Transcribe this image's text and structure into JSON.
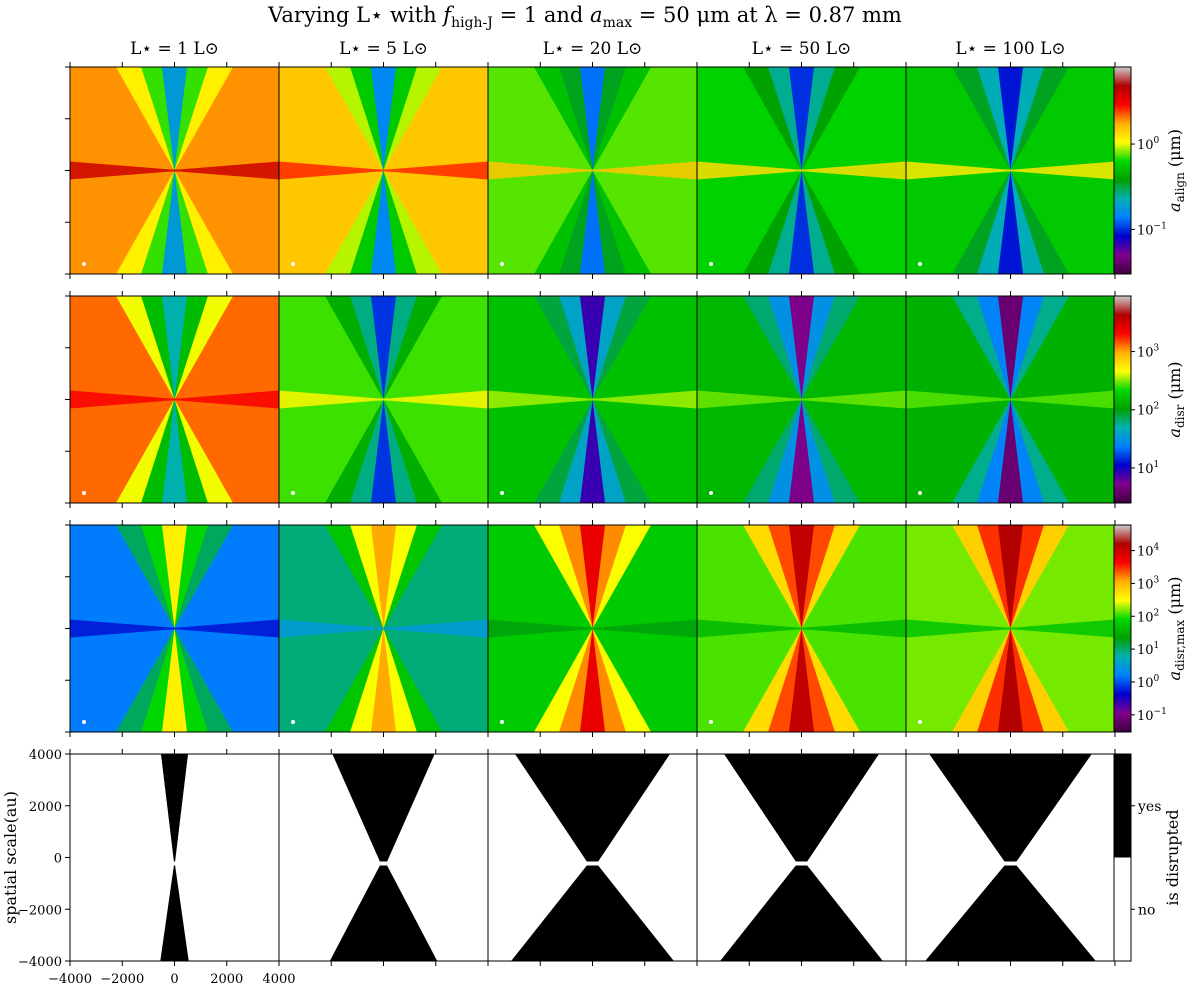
{
  "chart_data": {
    "type": "heatmap",
    "title": "Varying L⋆ with f_high-J = 1 and a_max = 50 μm at λ = 0.87 mm",
    "title_parts": {
      "prefix": "Varying L⋆ with ",
      "f": "f",
      "f_sub": "high-J",
      "eq1": " = 1 and ",
      "a": "a",
      "a_sub": "max",
      "eq2": " = 50 μm at λ = 0.87 mm"
    },
    "columns": [
      {
        "label": "L⋆ = 1 L⊙",
        "luminosity": 1
      },
      {
        "label": "L⋆ = 5 L⊙",
        "luminosity": 5
      },
      {
        "label": "L⋆ = 20 L⊙",
        "luminosity": 20
      },
      {
        "label": "L⋆ = 50 L⊙",
        "luminosity": 50
      },
      {
        "label": "L⋆ = 100 L⊙",
        "luminosity": 100
      }
    ],
    "rows": [
      {
        "quantity": "a_align",
        "colorbar_label": "a_align (μm)",
        "label_parts": {
          "sym": "a",
          "sub": "align",
          "unit": " (μm)"
        },
        "scale": "log",
        "ticks": [
          {
            "label": "10",
            "exp": "0",
            "value": 1
          },
          {
            "label": "10",
            "exp": "−1",
            "value": 0.1
          }
        ],
        "clim": [
          0.03,
          8
        ],
        "features": [
          {
            "bg": 1.9,
            "plane": 4.0,
            "lobe": 0.7,
            "core": 0.18
          },
          {
            "bg": 1.5,
            "plane": 2.6,
            "lobe": 0.55,
            "core": 0.15
          },
          {
            "bg": 0.75,
            "plane": 1.5,
            "lobe": 0.35,
            "core": 0.13
          },
          {
            "bg": 0.6,
            "plane": 1.3,
            "lobe": 0.25,
            "core": 0.1
          },
          {
            "bg": 0.55,
            "plane": 1.2,
            "lobe": 0.22,
            "core": 0.09
          }
        ]
      },
      {
        "quantity": "a_disr",
        "colorbar_label": "a_disr (μm)",
        "label_parts": {
          "sym": "a",
          "sub": "disr",
          "unit": " (μm)"
        },
        "scale": "log",
        "ticks": [
          {
            "label": "10",
            "exp": "3",
            "value": 1000
          },
          {
            "label": "10",
            "exp": "2",
            "value": 100
          },
          {
            "label": "10",
            "exp": "1",
            "value": 10
          }
        ],
        "clim": [
          2.5,
          9000
        ],
        "features": [
          {
            "bg": 1300,
            "plane": 2200,
            "lobe": 150,
            "core": 50
          },
          {
            "bg": 260,
            "plane": 500,
            "lobe": 60,
            "core": 15
          },
          {
            "bg": 160,
            "plane": 350,
            "lobe": 40,
            "core": 8
          },
          {
            "bg": 140,
            "plane": 300,
            "lobe": 30,
            "core": 5
          },
          {
            "bg": 130,
            "plane": 280,
            "lobe": 25,
            "core": 4
          }
        ]
      },
      {
        "quantity": "a_disr,max",
        "colorbar_label": "a_disr,max (μm)",
        "label_parts": {
          "sym": "a",
          "sub": "disr,max",
          "unit": " (μm)"
        },
        "scale": "log",
        "ticks": [
          {
            "label": "10",
            "exp": "4",
            "value": 10000
          },
          {
            "label": "10",
            "exp": "3",
            "value": 1000
          },
          {
            "label": "10",
            "exp": "2",
            "value": 100
          },
          {
            "label": "10",
            "exp": "1",
            "value": 10
          },
          {
            "label": "10",
            "exp": "0",
            "value": 1
          },
          {
            "label": "10",
            "exp": "−1",
            "value": 0.1
          }
        ],
        "clim": [
          0.03,
          60000
        ],
        "features": [
          {
            "bg": 1.5,
            "plane": 0.5,
            "lobe": 80,
            "core": 400
          },
          {
            "bg": 9,
            "plane": 3,
            "lobe": 300,
            "core": 1200
          },
          {
            "bg": 60,
            "plane": 20,
            "lobe": 1500,
            "core": 6000
          },
          {
            "bg": 120,
            "plane": 40,
            "lobe": 2500,
            "core": 12000
          },
          {
            "bg": 150,
            "plane": 50,
            "lobe": 3000,
            "core": 16000
          }
        ]
      },
      {
        "quantity": "is disrupted",
        "colorbar_label": "is disrupted",
        "scale": "binary",
        "ticks": [
          {
            "label": "yes",
            "value": 1
          },
          {
            "label": "no",
            "value": 0
          }
        ],
        "disrupted_extent": [
          0.1,
          0.6,
          0.95,
          0.95,
          1.0
        ]
      }
    ],
    "xlabel": "",
    "ylabel": "spatial scale(au)",
    "x_ticks": [
      -4000,
      -2000,
      0,
      2000,
      4000
    ],
    "y_ticks": [
      4000,
      2000,
      0,
      -2000,
      -4000
    ],
    "xlim": [
      -4000,
      4000
    ],
    "ylim": [
      -4000,
      4000
    ],
    "colormap": [
      "#3d003d",
      "#82008f",
      "#0000cc",
      "#0080ff",
      "#00b0b0",
      "#00a000",
      "#00d800",
      "#ffff00",
      "#ffb000",
      "#ff0000",
      "#b00000",
      "#cccccc"
    ]
  }
}
